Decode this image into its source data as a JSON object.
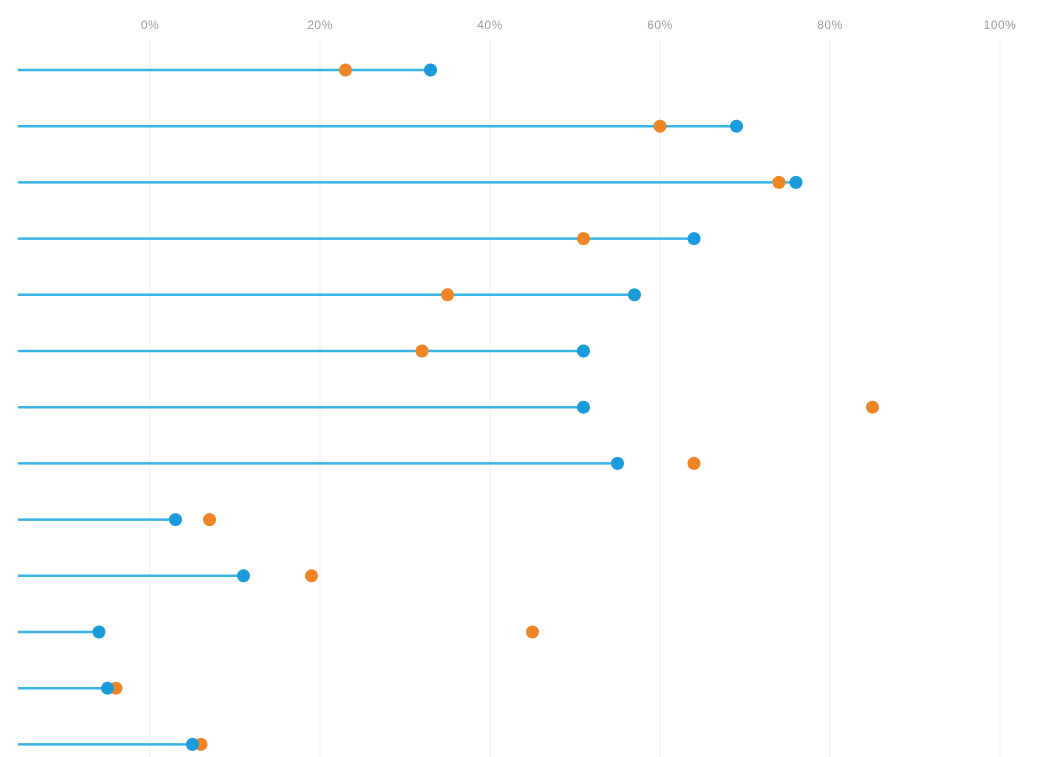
{
  "chart_data": {
    "type": "dot",
    "title": "",
    "xlabel": "",
    "ylabel": "",
    "x_unit": "%",
    "xlim": [
      0,
      100
    ],
    "x_ticks": [
      0,
      20,
      40,
      60,
      80,
      100
    ],
    "tick_labels": [
      "0%",
      "20%",
      "40%",
      "60%",
      "80%",
      "100%"
    ],
    "grid": true,
    "legend": "none",
    "series": [
      {
        "color": "#1a9bdc",
        "values": [
          33,
          69,
          76,
          64,
          57,
          51,
          51,
          55,
          3,
          11,
          -6,
          -5,
          5
        ]
      },
      {
        "color": "#ef8524",
        "values": [
          23,
          60,
          74,
          51,
          35,
          32,
          85,
          64,
          7,
          19,
          45,
          -4,
          6
        ]
      }
    ],
    "stem_series": 0,
    "stem_color": "#3ab4e6"
  }
}
